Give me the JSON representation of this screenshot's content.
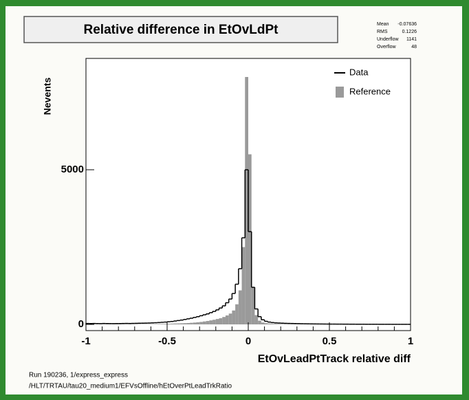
{
  "chart_data": {
    "type": "histogram",
    "title": "Relative difference in EtOvLdPt",
    "x_label": "EtOvLeadPtTrack  relative diff",
    "y_label": "Nevents",
    "bins": [
      -1,
      -0.98,
      -0.96,
      -0.94,
      -0.92,
      -0.9,
      -0.88,
      -0.86,
      -0.84,
      -0.82,
      -0.8,
      -0.78,
      -0.76,
      -0.74,
      -0.72,
      -0.7,
      -0.68,
      -0.66,
      -0.64,
      -0.62,
      -0.6,
      -0.58,
      -0.56,
      -0.54,
      -0.52,
      -0.5,
      -0.48,
      -0.46,
      -0.44,
      -0.42,
      -0.4,
      -0.38,
      -0.36,
      -0.34,
      -0.32,
      -0.3,
      -0.28,
      -0.26,
      -0.24,
      -0.22,
      -0.2,
      -0.18,
      -0.16,
      -0.14,
      -0.12,
      -0.1,
      -0.08,
      -0.06,
      -0.04,
      -0.02,
      0,
      0.02,
      0.04,
      0.06,
      0.08,
      0.1,
      0.12,
      0.14,
      0.16,
      0.18,
      0.2,
      0.22,
      0.24,
      0.26,
      0.28,
      0.3,
      0.32,
      0.34,
      0.36,
      0.38,
      0.4,
      0.42,
      0.44,
      0.46,
      0.48,
      0.5,
      0.52,
      0.54,
      0.56,
      0.58,
      0.6,
      0.62,
      0.64,
      0.66,
      0.68,
      0.7,
      0.72,
      0.74,
      0.76,
      0.78,
      0.8,
      0.82,
      0.84,
      0.86,
      0.88,
      0.9,
      0.92,
      0.94,
      0.96,
      0.98,
      1
    ],
    "series": [
      {
        "name": "Data",
        "color": "#000000",
        "style": "step",
        "values": [
          30,
          28,
          30,
          27,
          25,
          30,
          28,
          26,
          25,
          27,
          28,
          30,
          32,
          30,
          33,
          35,
          38,
          40,
          42,
          45,
          50,
          55,
          60,
          68,
          75,
          85,
          95,
          110,
          125,
          140,
          160,
          180,
          200,
          225,
          250,
          280,
          310,
          340,
          380,
          420,
          470,
          530,
          600,
          700,
          820,
          1000,
          1300,
          1800,
          2800,
          5000,
          3000,
          1200,
          500,
          250,
          150,
          100,
          75,
          60,
          50,
          45,
          40,
          35,
          32,
          30,
          28,
          25,
          22,
          20,
          18,
          16,
          15,
          14,
          13,
          12,
          11,
          10,
          10,
          9,
          9,
          8,
          8,
          7,
          7,
          6,
          6,
          6,
          5,
          5,
          5,
          5,
          4,
          4,
          4,
          4,
          3,
          3,
          3,
          3,
          3,
          3
        ]
      },
      {
        "name": "Reference",
        "color": "#9a9a9a",
        "style": "filled",
        "values": [
          8,
          8,
          8,
          8,
          8,
          9,
          9,
          9,
          9,
          9,
          10,
          10,
          10,
          10,
          10,
          10,
          11,
          11,
          11,
          11,
          12,
          14,
          16,
          18,
          20,
          22,
          25,
          28,
          32,
          36,
          40,
          45,
          52,
          60,
          70,
          80,
          95,
          110,
          130,
          150,
          175,
          200,
          240,
          290,
          350,
          450,
          650,
          1100,
          2500,
          8000,
          5500,
          1200,
          300,
          120,
          60,
          40,
          30,
          25,
          20,
          18,
          16,
          14,
          12,
          11,
          10,
          9,
          8,
          7,
          7,
          6,
          6,
          5,
          5,
          5,
          4,
          4,
          4,
          3,
          3,
          3,
          3,
          3,
          2,
          2,
          2,
          2,
          2,
          2,
          2,
          2,
          1,
          1,
          1,
          1,
          1,
          1,
          1,
          1,
          1,
          1
        ]
      }
    ],
    "xlim": [
      -1,
      1
    ],
    "ylim": [
      -200,
      8600
    ],
    "xticks": [
      -1,
      -0.5,
      0,
      0.5,
      1
    ],
    "yticks": [
      0,
      5000
    ],
    "legend": "top-right",
    "stats": [
      {
        "label": "Mean",
        "value": -0.07636
      },
      {
        "label": "RMS",
        "value": 0.1226
      },
      {
        "label": "Underflow",
        "value": 1141
      },
      {
        "label": "Overflow",
        "value": 48
      }
    ],
    "footer": [
      "Run 190236, 1/express_express",
      "/HLT/TRTAU/tau20_medium1/EFVsOffline/hEtOverPtLeadTrkRatio"
    ]
  }
}
